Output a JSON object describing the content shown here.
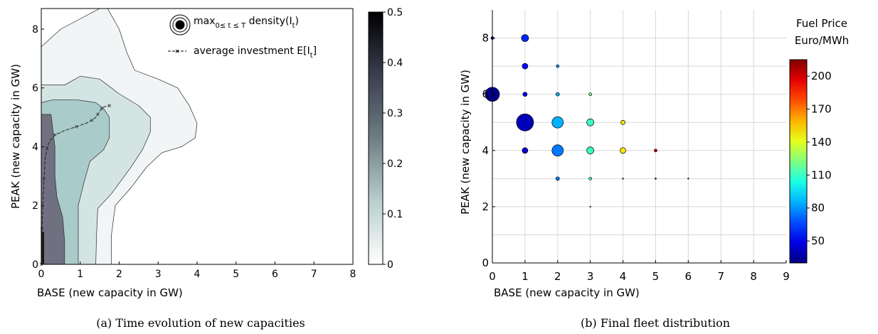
{
  "panels": {
    "a": {
      "caption": "(a) Time evolution of new capacities",
      "xlabel": "BASE (new capacity in GW)",
      "ylabel": "PEAK (new capacity in GW)",
      "xticks": [
        0,
        1,
        2,
        3,
        4,
        5,
        6,
        7,
        8
      ],
      "yticks": [
        0,
        2,
        4,
        6,
        8
      ],
      "legend": {
        "density_main": "max",
        "density_sub": "0≤ t ≤ T",
        "density_tail": " density(I",
        "density_tail_sub": "t",
        "density_close": ")",
        "avg_main": "average investment E[I",
        "avg_sub": "t",
        "avg_close": "]"
      },
      "colorbar": {
        "ticks": [
          "0",
          "0.1",
          "0.2",
          "0.3",
          "0.4",
          "0.5"
        ]
      }
    },
    "b": {
      "caption": "(b) Final fleet distribution",
      "xlabel": "BASE (new capacity in GW)",
      "ylabel": "PEAK (new capacity in GW)",
      "xticks": [
        0,
        1,
        2,
        3,
        4,
        5,
        6,
        7,
        8,
        9
      ],
      "yticks": [
        0,
        2,
        4,
        6,
        8
      ],
      "colorbar_title_1": "Fuel Price",
      "colorbar_title_2": "Euro/MWh",
      "colorbar_ticks": [
        "50",
        "80",
        "110",
        "140",
        "170",
        "200"
      ]
    }
  },
  "chart_data": [
    {
      "type": "contour",
      "xlim": [
        0,
        8
      ],
      "ylim": [
        0,
        8.7
      ],
      "levels": [
        0,
        0.1,
        0.2,
        0.3,
        0.4,
        0.5
      ],
      "contours": [
        {
          "level": 0.01,
          "color": "#f1f5f5",
          "points": [
            [
              0,
              7.4
            ],
            [
              0.5,
              8
            ],
            [
              1.5,
              8.7
            ],
            [
              1.7,
              8.7
            ],
            [
              2.0,
              8.0
            ],
            [
              2.2,
              7.2
            ],
            [
              2.4,
              6.6
            ],
            [
              3.0,
              6.3
            ],
            [
              3.5,
              6.0
            ],
            [
              3.8,
              5.4
            ],
            [
              4.0,
              4.8
            ],
            [
              3.95,
              4.3
            ],
            [
              3.6,
              4.0
            ],
            [
              3.1,
              3.8
            ],
            [
              2.7,
              3.3
            ],
            [
              2.3,
              2.6
            ],
            [
              1.9,
              2.0
            ],
            [
              1.8,
              1.0
            ],
            [
              1.8,
              0
            ],
            [
              0,
              0
            ]
          ]
        },
        {
          "level": 0.1,
          "color": "#d4e4e3",
          "points": [
            [
              0,
              6.1
            ],
            [
              0.6,
              6.1
            ],
            [
              1.0,
              6.4
            ],
            [
              1.5,
              6.3
            ],
            [
              2.0,
              5.8
            ],
            [
              2.5,
              5.4
            ],
            [
              2.8,
              5.0
            ],
            [
              2.8,
              4.5
            ],
            [
              2.6,
              3.9
            ],
            [
              2.3,
              3.3
            ],
            [
              1.8,
              2.4
            ],
            [
              1.45,
              1.9
            ],
            [
              1.42,
              1.0
            ],
            [
              1.4,
              0
            ],
            [
              0,
              0
            ]
          ]
        },
        {
          "level": 0.15,
          "color": "#a9cbc9",
          "points": [
            [
              0,
              5.5
            ],
            [
              0.3,
              5.6
            ],
            [
              0.9,
              5.6
            ],
            [
              1.4,
              5.5
            ],
            [
              1.6,
              5.3
            ],
            [
              1.75,
              5.0
            ],
            [
              1.75,
              4.3
            ],
            [
              1.6,
              3.9
            ],
            [
              1.25,
              3.5
            ],
            [
              1.1,
              2.8
            ],
            [
              0.95,
              2.0
            ],
            [
              0.95,
              1.0
            ],
            [
              0.95,
              0
            ],
            [
              0,
              0
            ]
          ]
        },
        {
          "level": 0.3,
          "color": "#6f7180",
          "points": [
            [
              0,
              5.1
            ],
            [
              0.25,
              5.1
            ],
            [
              0.35,
              4.0
            ],
            [
              0.35,
              3.0
            ],
            [
              0.4,
              2.3
            ],
            [
              0.55,
              1.6
            ],
            [
              0.6,
              0.8
            ],
            [
              0.6,
              0
            ],
            [
              0,
              0
            ]
          ]
        }
      ],
      "average_investment": [
        [
          0,
          0
        ],
        [
          0,
          0.6
        ],
        [
          0.02,
          1.2
        ],
        [
          0.04,
          2.0
        ],
        [
          0.07,
          2.9
        ],
        [
          0.1,
          3.6
        ],
        [
          0.15,
          3.95
        ],
        [
          0.22,
          4.2
        ],
        [
          0.35,
          4.4
        ],
        [
          0.6,
          4.55
        ],
        [
          0.9,
          4.68
        ],
        [
          1.15,
          4.8
        ],
        [
          1.3,
          4.9
        ],
        [
          1.4,
          5.0
        ],
        [
          1.45,
          5.1
        ],
        [
          1.5,
          5.2
        ],
        [
          1.55,
          5.3
        ],
        [
          1.6,
          5.35
        ],
        [
          1.75,
          5.4
        ]
      ]
    },
    {
      "type": "scatter",
      "xlim": [
        0,
        9
      ],
      "ylim": [
        0,
        9
      ],
      "color_range": [
        30,
        215
      ],
      "points": [
        {
          "x": 0,
          "y": 8,
          "r": 2,
          "c": 45
        },
        {
          "x": 1,
          "y": 8,
          "r": 5,
          "c": 60
        },
        {
          "x": 1,
          "y": 7,
          "r": 4,
          "c": 55
        },
        {
          "x": 2,
          "y": 7,
          "r": 2,
          "c": 80
        },
        {
          "x": 0,
          "y": 6,
          "r": 10,
          "c": 32
        },
        {
          "x": 1,
          "y": 6,
          "r": 3,
          "c": 50
        },
        {
          "x": 2,
          "y": 6,
          "r": 2.5,
          "c": 85
        },
        {
          "x": 3,
          "y": 6,
          "r": 2,
          "c": 120
        },
        {
          "x": 1,
          "y": 5,
          "r": 12,
          "c": 40
        },
        {
          "x": 2,
          "y": 5,
          "r": 8,
          "c": 85
        },
        {
          "x": 3,
          "y": 5,
          "r": 5,
          "c": 110
        },
        {
          "x": 4,
          "y": 5,
          "r": 3,
          "c": 150
        },
        {
          "x": 1,
          "y": 4,
          "r": 4,
          "c": 45
        },
        {
          "x": 2,
          "y": 4,
          "r": 8,
          "c": 75
        },
        {
          "x": 3,
          "y": 4,
          "r": 5,
          "c": 110
        },
        {
          "x": 4,
          "y": 4,
          "r": 4,
          "c": 150
        },
        {
          "x": 5,
          "y": 4,
          "r": 2,
          "c": 200
        },
        {
          "x": 2,
          "y": 3,
          "r": 2.5,
          "c": 75
        },
        {
          "x": 3,
          "y": 3,
          "r": 2,
          "c": 110
        },
        {
          "x": 4,
          "y": 3,
          "r": 1,
          "c": 150
        },
        {
          "x": 5,
          "y": 3,
          "r": 1,
          "c": 190
        },
        {
          "x": 6,
          "y": 3,
          "r": 0.8,
          "c": 200
        },
        {
          "x": 3,
          "y": 2,
          "r": 0.8,
          "c": 120
        }
      ]
    }
  ]
}
